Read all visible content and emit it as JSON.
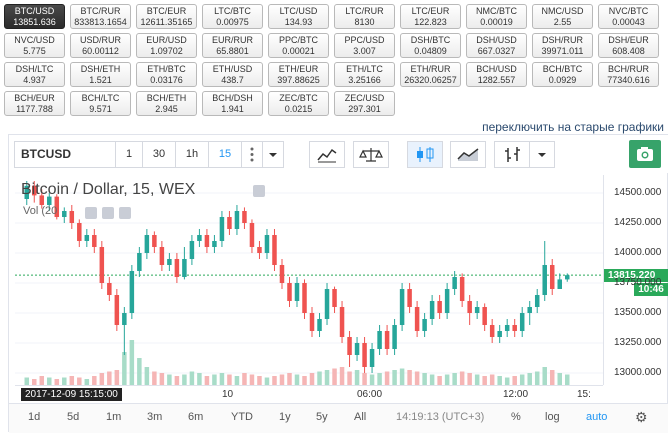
{
  "tickers": [
    {
      "pair": "BTC/USD",
      "value": "13851.636",
      "active": true
    },
    {
      "pair": "BTC/RUR",
      "value": "833813.1654"
    },
    {
      "pair": "BTC/EUR",
      "value": "12611.35165"
    },
    {
      "pair": "LTC/BTC",
      "value": "0.00975"
    },
    {
      "pair": "LTC/USD",
      "value": "134.93"
    },
    {
      "pair": "LTC/RUR",
      "value": "8130"
    },
    {
      "pair": "LTC/EUR",
      "value": "122.823"
    },
    {
      "pair": "NMC/BTC",
      "value": "0.00019"
    },
    {
      "pair": "NMC/USD",
      "value": "2.55"
    },
    {
      "pair": "NVC/BTC",
      "value": "0.00043"
    },
    {
      "pair": "NVC/USD",
      "value": "5.775"
    },
    {
      "pair": "USD/RUR",
      "value": "60.00112"
    },
    {
      "pair": "EUR/USD",
      "value": "1.09702"
    },
    {
      "pair": "EUR/RUR",
      "value": "65.8801"
    },
    {
      "pair": "PPC/BTC",
      "value": "0.00021"
    },
    {
      "pair": "PPC/USD",
      "value": "3.007"
    },
    {
      "pair": "DSH/BTC",
      "value": "0.04809"
    },
    {
      "pair": "DSH/USD",
      "value": "667.0327"
    },
    {
      "pair": "DSH/RUR",
      "value": "39971.011"
    },
    {
      "pair": "DSH/EUR",
      "value": "608.408"
    },
    {
      "pair": "DSH/LTC",
      "value": "4.937"
    },
    {
      "pair": "DSH/ETH",
      "value": "1.521"
    },
    {
      "pair": "ETH/BTC",
      "value": "0.03176"
    },
    {
      "pair": "ETH/USD",
      "value": "438.7"
    },
    {
      "pair": "ETH/EUR",
      "value": "397.88625"
    },
    {
      "pair": "ETH/LTC",
      "value": "3.25166"
    },
    {
      "pair": "ETH/RUR",
      "value": "26320.06257"
    },
    {
      "pair": "BCH/USD",
      "value": "1282.557"
    },
    {
      "pair": "BCH/BTC",
      "value": "0.0929"
    },
    {
      "pair": "BCH/RUR",
      "value": "77340.616"
    },
    {
      "pair": "BCH/EUR",
      "value": "1177.788"
    },
    {
      "pair": "BCH/LTC",
      "value": "9.571"
    },
    {
      "pair": "BCH/ETH",
      "value": "2.945"
    },
    {
      "pair": "BCH/DSH",
      "value": "1.941"
    },
    {
      "pair": "ZEC/BTC",
      "value": "0.0215"
    },
    {
      "pair": "ZEC/USD",
      "value": "297.301"
    }
  ],
  "switch_link": "переключить на старые графики",
  "toolbar": {
    "symbol": "BTCUSD",
    "intervals": [
      "1",
      "30",
      "1h",
      "15"
    ],
    "selected_interval": "15"
  },
  "legend": {
    "title": "Bitcoin / Dollar, 15, WEX",
    "sub": "Vol (20"
  },
  "price_axis": [
    "14500.000",
    "14250.000",
    "14000.000",
    "13750.000",
    "13500.000",
    "13250.000",
    "13000.000"
  ],
  "last_price": "13815.220",
  "last_time": "10:46",
  "time_axis": {
    "cursor": "2017-12-09 15:15:00",
    "labels": [
      "10",
      "06:00",
      "12:00",
      "15:"
    ]
  },
  "bottom_bar": {
    "ranges": [
      "1d",
      "5d",
      "1m",
      "3m",
      "6m",
      "YTD",
      "1y",
      "5y",
      "All"
    ],
    "clock": "14:19:13 (UTC+3)",
    "percent": "%",
    "log": "log",
    "auto": "auto"
  },
  "colors": {
    "up": "#26a69a",
    "down": "#ef5350",
    "accent": "#2196f3",
    "price_tag": "#2aa95a"
  },
  "chart_data": {
    "type": "candlestick",
    "title": "Bitcoin / Dollar, 15, WEX",
    "ylim": [
      12900,
      14650
    ],
    "candles": [
      {
        "o": 14450,
        "c": 14560,
        "h": 14600,
        "l": 14400
      },
      {
        "o": 14560,
        "c": 14480,
        "h": 14600,
        "l": 14420
      },
      {
        "o": 14480,
        "c": 14400,
        "h": 14530,
        "l": 14370
      },
      {
        "o": 14400,
        "c": 14470,
        "h": 14500,
        "l": 14350
      },
      {
        "o": 14470,
        "c": 14300,
        "h": 14490,
        "l": 14280
      },
      {
        "o": 14300,
        "c": 14350,
        "h": 14380,
        "l": 14250
      },
      {
        "o": 14350,
        "c": 14250,
        "h": 14400,
        "l": 14200
      },
      {
        "o": 14250,
        "c": 14100,
        "h": 14280,
        "l": 14050
      },
      {
        "o": 14100,
        "c": 14150,
        "h": 14200,
        "l": 14050
      },
      {
        "o": 14150,
        "c": 14050,
        "h": 14200,
        "l": 14000
      },
      {
        "o": 14050,
        "c": 13750,
        "h": 14100,
        "l": 13700
      },
      {
        "o": 13750,
        "c": 13650,
        "h": 13800,
        "l": 13600
      },
      {
        "o": 13650,
        "c": 13400,
        "h": 13700,
        "l": 13350
      },
      {
        "o": 13400,
        "c": 13500,
        "h": 13550,
        "l": 13150
      },
      {
        "o": 13500,
        "c": 13850,
        "h": 13900,
        "l": 13450
      },
      {
        "o": 13850,
        "c": 14000,
        "h": 14050,
        "l": 13800
      },
      {
        "o": 14000,
        "c": 14150,
        "h": 14200,
        "l": 13950
      },
      {
        "o": 14150,
        "c": 14050,
        "h": 14180,
        "l": 14000
      },
      {
        "o": 14050,
        "c": 13900,
        "h": 14100,
        "l": 13850
      },
      {
        "o": 13900,
        "c": 13950,
        "h": 14000,
        "l": 13850
      },
      {
        "o": 13950,
        "c": 13800,
        "h": 14000,
        "l": 13750
      },
      {
        "o": 13800,
        "c": 13950,
        "h": 14050,
        "l": 13780
      },
      {
        "o": 13950,
        "c": 14100,
        "h": 14150,
        "l": 13900
      },
      {
        "o": 14100,
        "c": 14150,
        "h": 14200,
        "l": 14050
      },
      {
        "o": 14150,
        "c": 14050,
        "h": 14200,
        "l": 14000
      },
      {
        "o": 14050,
        "c": 14100,
        "h": 14150,
        "l": 14000
      },
      {
        "o": 14100,
        "c": 14300,
        "h": 14350,
        "l": 14050
      },
      {
        "o": 14300,
        "c": 14200,
        "h": 14350,
        "l": 14150
      },
      {
        "o": 14200,
        "c": 14350,
        "h": 14400,
        "l": 14150
      },
      {
        "o": 14350,
        "c": 14250,
        "h": 14380,
        "l": 14200
      },
      {
        "o": 14250,
        "c": 14050,
        "h": 14280,
        "l": 14000
      },
      {
        "o": 14050,
        "c": 14000,
        "h": 14100,
        "l": 13950
      },
      {
        "o": 14000,
        "c": 14150,
        "h": 14200,
        "l": 13950
      },
      {
        "o": 14150,
        "c": 13900,
        "h": 14200,
        "l": 13850
      },
      {
        "o": 13900,
        "c": 13750,
        "h": 13950,
        "l": 13700
      },
      {
        "o": 13750,
        "c": 13600,
        "h": 13800,
        "l": 13550
      },
      {
        "o": 13600,
        "c": 13750,
        "h": 13800,
        "l": 13550
      },
      {
        "o": 13750,
        "c": 13500,
        "h": 13780,
        "l": 13450
      },
      {
        "o": 13500,
        "c": 13350,
        "h": 13550,
        "l": 13300
      },
      {
        "o": 13350,
        "c": 13450,
        "h": 13500,
        "l": 13300
      },
      {
        "o": 13450,
        "c": 13700,
        "h": 13750,
        "l": 13400
      },
      {
        "o": 13700,
        "c": 13550,
        "h": 13720,
        "l": 13500
      },
      {
        "o": 13550,
        "c": 13300,
        "h": 13600,
        "l": 13250
      },
      {
        "o": 13300,
        "c": 13150,
        "h": 13350,
        "l": 13050
      },
      {
        "o": 13150,
        "c": 13250,
        "h": 13300,
        "l": 13100
      },
      {
        "o": 13250,
        "c": 13050,
        "h": 13300,
        "l": 13000
      },
      {
        "o": 13050,
        "c": 13200,
        "h": 13250,
        "l": 13000
      },
      {
        "o": 13200,
        "c": 13350,
        "h": 13400,
        "l": 13150
      },
      {
        "o": 13350,
        "c": 13200,
        "h": 13400,
        "l": 13150
      },
      {
        "o": 13200,
        "c": 13400,
        "h": 13450,
        "l": 13150
      },
      {
        "o": 13400,
        "c": 13700,
        "h": 13750,
        "l": 13350
      },
      {
        "o": 13700,
        "c": 13550,
        "h": 13750,
        "l": 13500
      },
      {
        "o": 13550,
        "c": 13350,
        "h": 13600,
        "l": 13300
      },
      {
        "o": 13350,
        "c": 13450,
        "h": 13500,
        "l": 13300
      },
      {
        "o": 13450,
        "c": 13600,
        "h": 13650,
        "l": 13400
      },
      {
        "o": 13600,
        "c": 13500,
        "h": 13650,
        "l": 13450
      },
      {
        "o": 13500,
        "c": 13700,
        "h": 13750,
        "l": 13450
      },
      {
        "o": 13700,
        "c": 13800,
        "h": 13850,
        "l": 13650
      },
      {
        "o": 13800,
        "c": 13600,
        "h": 13830,
        "l": 13550
      },
      {
        "o": 13600,
        "c": 13500,
        "h": 13650,
        "l": 13400
      },
      {
        "o": 13500,
        "c": 13550,
        "h": 13600,
        "l": 13450
      },
      {
        "o": 13550,
        "c": 13400,
        "h": 13580,
        "l": 13350
      },
      {
        "o": 13400,
        "c": 13300,
        "h": 13450,
        "l": 13250
      },
      {
        "o": 13300,
        "c": 13350,
        "h": 13400,
        "l": 13250
      },
      {
        "o": 13350,
        "c": 13400,
        "h": 13450,
        "l": 13300
      },
      {
        "o": 13400,
        "c": 13350,
        "h": 13450,
        "l": 13300
      },
      {
        "o": 13350,
        "c": 13500,
        "h": 13550,
        "l": 13300
      },
      {
        "o": 13500,
        "c": 13550,
        "h": 13600,
        "l": 13400
      },
      {
        "o": 13550,
        "c": 13650,
        "h": 13700,
        "l": 13500
      },
      {
        "o": 13650,
        "c": 13900,
        "h": 14100,
        "l": 13600
      },
      {
        "o": 13900,
        "c": 13700,
        "h": 13950,
        "l": 13650
      },
      {
        "o": 13700,
        "c": 13780,
        "h": 13830,
        "l": 13700
      },
      {
        "o": 13780,
        "c": 13815,
        "h": 13830,
        "l": 13760
      }
    ],
    "volumes": [
      5,
      4,
      6,
      5,
      4,
      5,
      6,
      5,
      4,
      6,
      8,
      9,
      10,
      22,
      30,
      18,
      12,
      9,
      8,
      7,
      6,
      7,
      9,
      8,
      6,
      7,
      8,
      7,
      6,
      8,
      7,
      6,
      5,
      6,
      7,
      8,
      7,
      6,
      8,
      9,
      10,
      11,
      12,
      9,
      10,
      8,
      7,
      8,
      9,
      10,
      11,
      10,
      9,
      8,
      7,
      6,
      7,
      8,
      9,
      8,
      7,
      6,
      7,
      6,
      5,
      6,
      7,
      8,
      9,
      12,
      10,
      8,
      7
    ],
    "last_price": 13815.22
  }
}
